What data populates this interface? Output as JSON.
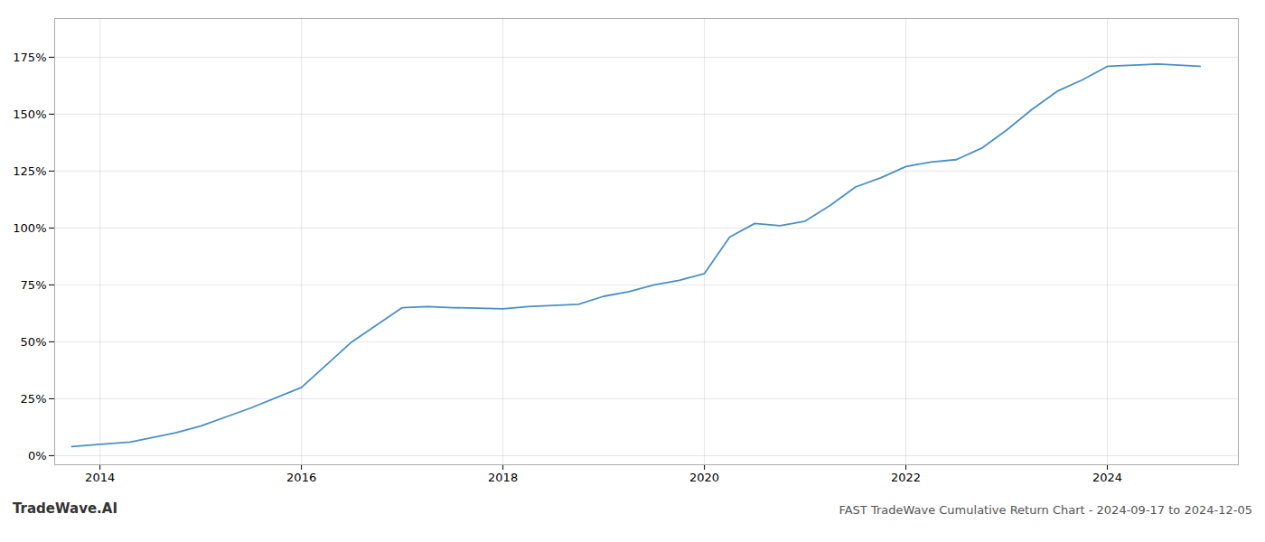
{
  "chart_data": {
    "type": "line",
    "title": "FAST TradeWave Cumulative Return Chart - 2024-09-17 to 2024-12-05",
    "annotations": [
      "TradeWave.AI"
    ],
    "color": "#4a90c4",
    "grid": true,
    "x": [
      2013.72,
      2014.0,
      2014.3,
      2014.75,
      2015.0,
      2015.5,
      2016.0,
      2016.5,
      2017.0,
      2017.25,
      2017.5,
      2017.75,
      2018.0,
      2018.25,
      2018.5,
      2018.75,
      2019.0,
      2019.25,
      2019.5,
      2019.75,
      2020.0,
      2020.25,
      2020.5,
      2020.75,
      2021.0,
      2021.25,
      2021.5,
      2021.75,
      2022.0,
      2022.25,
      2022.5,
      2022.75,
      2023.0,
      2023.25,
      2023.5,
      2023.75,
      2024.0,
      2024.5,
      2024.92
    ],
    "values": [
      0.04,
      0.05,
      0.06,
      0.1,
      0.13,
      0.21,
      0.3,
      0.5,
      0.65,
      0.655,
      0.65,
      0.648,
      0.645,
      0.655,
      0.66,
      0.665,
      0.7,
      0.72,
      0.75,
      0.77,
      0.8,
      0.96,
      1.02,
      1.01,
      1.03,
      1.1,
      1.18,
      1.22,
      1.27,
      1.29,
      1.3,
      1.35,
      1.43,
      1.52,
      1.6,
      1.65,
      1.71,
      1.72,
      1.71
    ],
    "xlim": [
      2013.55,
      2025.3
    ],
    "xticks": [
      2014,
      2016,
      2018,
      2020,
      2022,
      2024
    ],
    "ylim": [
      -0.04,
      1.92
    ],
    "yticks": [
      {
        "value": 0.0,
        "label": "0%"
      },
      {
        "value": 0.25,
        "label": "25%"
      },
      {
        "value": 0.5,
        "label": "50%"
      },
      {
        "value": 0.75,
        "label": "75%"
      },
      {
        "value": 1.0,
        "label": "100%"
      },
      {
        "value": 1.25,
        "label": "125%"
      },
      {
        "value": 1.5,
        "label": "150%"
      },
      {
        "value": 1.75,
        "label": "175%"
      }
    ]
  }
}
